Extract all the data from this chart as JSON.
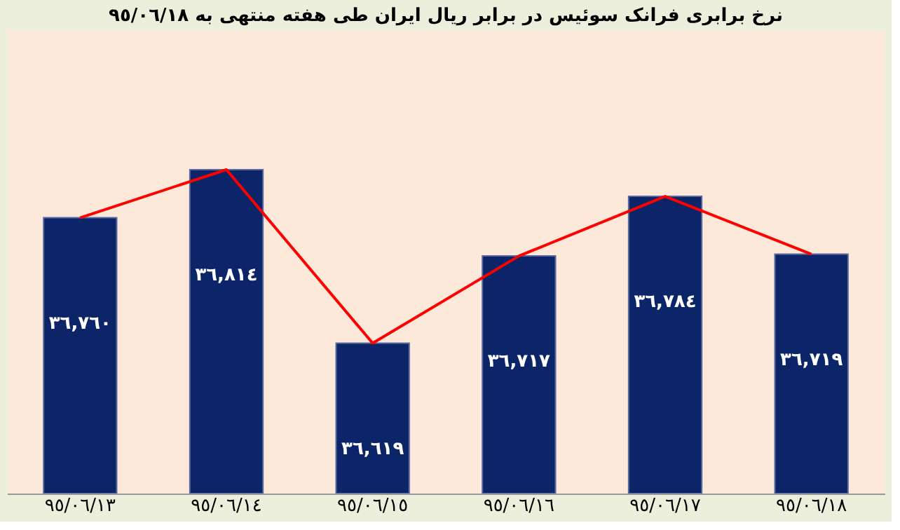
{
  "chart_data": {
    "type": "bar",
    "title": "نرخ برابری فرانک سوئیس در برابر ریال ایران طی هفته منتهی به ٩٥/٠٦/١٨",
    "categories": [
      "٩٥/٠٦/١٣",
      "٩٥/٠٦/١٤",
      "٩٥/٠٦/١٥",
      "٩٥/٠٦/١٦",
      "٩٥/٠٦/١٧",
      "٩٥/٠٦/١٨"
    ],
    "series": [
      {
        "color": "#0c2468",
        "values": [
          36760,
          36814,
          36619,
          36717,
          36784,
          36719
        ],
        "value_labels": [
          "٣٦,٧٦٠",
          "٣٦,٨١٤",
          "٣٦,٦١٩",
          "٣٦,٧١٧",
          "٣٦,٧٨٤",
          "٣٦,٧١٩"
        ]
      },
      {
        "type": "line",
        "color": "#ff0000",
        "values": [
          36760,
          36814,
          36619,
          36717,
          36784,
          36719
        ]
      }
    ],
    "ylim": [
      36450,
      36970
    ],
    "tick_labels": "x",
    "grid": false
  }
}
